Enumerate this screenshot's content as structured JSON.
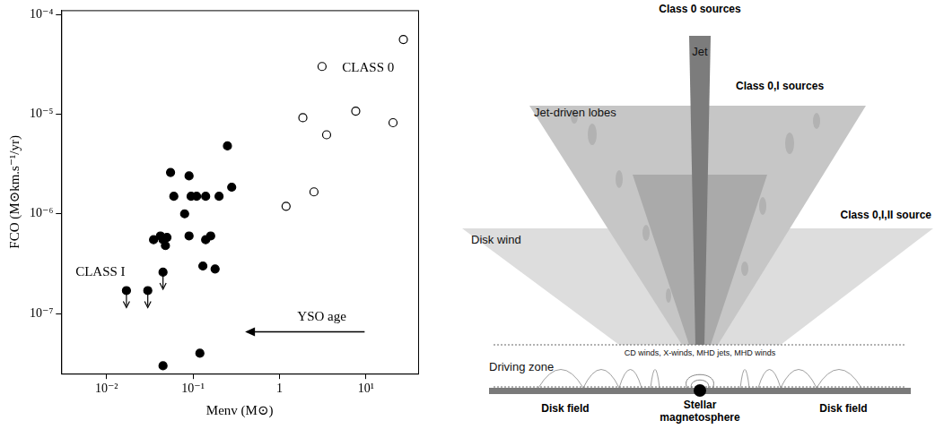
{
  "chart_data": {
    "type": "scatter",
    "xlabel": "Menv (M⊙)",
    "ylabel": "FCO (M⊙km.s⁻¹/yr)",
    "log": true,
    "grid": false,
    "legend": false,
    "xlim": [
      0.003,
      40
    ],
    "ylim": [
      2.5e-08,
      0.00011
    ],
    "xticks": [
      {
        "value": 0.01,
        "label": "10⁻²"
      },
      {
        "value": 0.1,
        "label": "10⁻¹"
      },
      1,
      {
        "value": 10,
        "label": "10¹"
      }
    ],
    "yticks": [
      {
        "value": 1e-07,
        "label": "10⁻⁷"
      },
      {
        "value": 1e-06,
        "label": "10⁻⁶"
      },
      {
        "value": 1e-05,
        "label": "10⁻⁵"
      },
      {
        "value": 0.0001,
        "label": "10⁻⁴"
      }
    ],
    "annotations": [
      "CLASS 0",
      "CLASS I",
      "YSO age"
    ],
    "series": [
      {
        "marker": "open_circle",
        "color": "#000000",
        "x": [
          3.1,
          27,
          7.6,
          20.5,
          1.86,
          3.5,
          2.5,
          1.19
        ],
        "values": [
          3e-05,
          5.6e-05,
          1.07e-05,
          8.2e-06,
          9.2e-06,
          6.2e-06,
          1.66e-06,
          1.19e-06
        ]
      },
      {
        "marker": "filled_circle",
        "color": "#000000",
        "x": [
          0.055,
          0.09,
          0.25,
          0.06,
          0.08,
          0.095,
          0.11,
          0.14,
          0.2,
          0.28,
          0.035,
          0.042,
          0.05,
          0.048,
          0.09,
          0.14,
          0.16,
          0.18,
          0.13,
          0.045,
          0.045,
          0.12
        ],
        "values": [
          2.6e-06,
          2.4e-06,
          4.8e-06,
          1.5e-06,
          1e-06,
          1.5e-06,
          1.5e-06,
          1.5e-06,
          1.5e-06,
          1.85e-06,
          5.5e-07,
          6e-07,
          5.8e-07,
          4.8e-07,
          6e-07,
          5.5e-07,
          6e-07,
          2.8e-07,
          3e-07,
          5.5e-07,
          3e-08,
          4e-08
        ]
      },
      {
        "marker": "upper_limit",
        "color": "#000000",
        "x": [
          0.017,
          0.03,
          0.045
        ],
        "values": [
          1.7e-07,
          1.7e-07,
          2.6e-07
        ]
      }
    ]
  },
  "diagram": {
    "headings": [
      "Class 0 sources",
      "Class 0,I sources",
      "Class 0,I,II source"
    ],
    "components": {
      "jet": "Jet",
      "lobes": "Jet-driven lobes",
      "disk_wind": "Disk wind",
      "driving_zone": "Driving zone",
      "mechanisms": "CD winds, X-winds, MHD jets, MHD winds",
      "disk_field_left": "Disk field",
      "magnetosphere": "Stellar magnetosphere",
      "disk_field_right": "Disk field"
    }
  }
}
